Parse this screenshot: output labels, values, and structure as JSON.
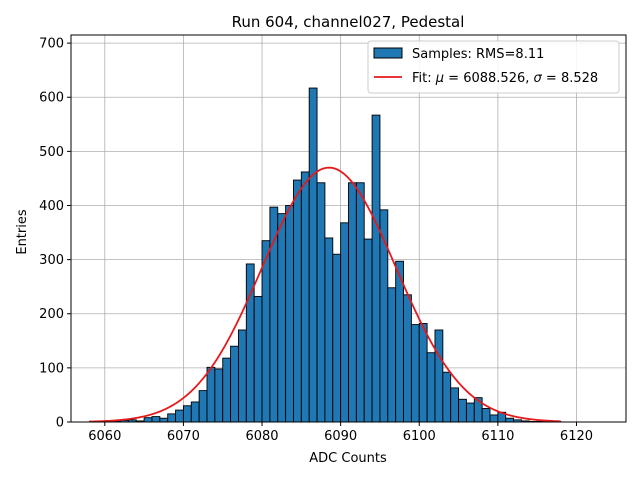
{
  "chart_data": {
    "type": "bar",
    "title": "Run 604, channel027, Pedestal",
    "xlabel": "ADC Counts",
    "ylabel": "Entries",
    "xlim": [
      6055.7,
      6126.3
    ],
    "ylim": [
      0,
      715
    ],
    "xticks": [
      6060,
      6070,
      6080,
      6090,
      6100,
      6110,
      6120
    ],
    "yticks": [
      0,
      100,
      200,
      300,
      400,
      500,
      600,
      700
    ],
    "grid": true,
    "legend_position": "top-right",
    "bin_width": 1,
    "histogram": {
      "name": "Samples: RMS=8.11",
      "color": "#1f77b4",
      "edgecolor": "#000000",
      "bins": [
        [
          6059,
          1
        ],
        [
          6060,
          1
        ],
        [
          6061,
          2
        ],
        [
          6062,
          3
        ],
        [
          6063,
          4
        ],
        [
          6064,
          2
        ],
        [
          6065,
          8
        ],
        [
          6066,
          10
        ],
        [
          6067,
          7
        ],
        [
          6068,
          15
        ],
        [
          6069,
          22
        ],
        [
          6070,
          30
        ],
        [
          6071,
          37
        ],
        [
          6072,
          58
        ],
        [
          6073,
          101
        ],
        [
          6074,
          98
        ],
        [
          6075,
          118
        ],
        [
          6076,
          140
        ],
        [
          6077,
          170
        ],
        [
          6078,
          292
        ],
        [
          6079,
          232
        ],
        [
          6080,
          335
        ],
        [
          6081,
          397
        ],
        [
          6082,
          385
        ],
        [
          6083,
          400
        ],
        [
          6084,
          447
        ],
        [
          6085,
          462
        ],
        [
          6086,
          617
        ],
        [
          6087,
          442
        ],
        [
          6088,
          340
        ],
        [
          6089,
          310
        ],
        [
          6090,
          368
        ],
        [
          6091,
          442
        ],
        [
          6092,
          442
        ],
        [
          6093,
          338
        ],
        [
          6094,
          567
        ],
        [
          6095,
          392
        ],
        [
          6096,
          248
        ],
        [
          6097,
          297
        ],
        [
          6098,
          235
        ],
        [
          6099,
          180
        ],
        [
          6100,
          182
        ],
        [
          6101,
          128
        ],
        [
          6102,
          170
        ],
        [
          6103,
          92
        ],
        [
          6104,
          63
        ],
        [
          6105,
          42
        ],
        [
          6106,
          35
        ],
        [
          6107,
          45
        ],
        [
          6108,
          25
        ],
        [
          6109,
          13
        ],
        [
          6110,
          18
        ],
        [
          6111,
          7
        ],
        [
          6112,
          4
        ],
        [
          6113,
          2
        ],
        [
          6114,
          1
        ],
        [
          6115,
          1
        ],
        [
          6116,
          1
        ],
        [
          6117,
          1
        ]
      ]
    },
    "fit": {
      "name_prefix": "Fit: ",
      "mu_symbol": "μ",
      "mu_value": "6088.526",
      "sigma_symbol": "σ",
      "sigma_value": "8.528",
      "mu": 6088.526,
      "sigma": 8.528,
      "amplitude": 470,
      "x_range": [
        6058,
        6118
      ],
      "color": "#e41a1c"
    }
  }
}
